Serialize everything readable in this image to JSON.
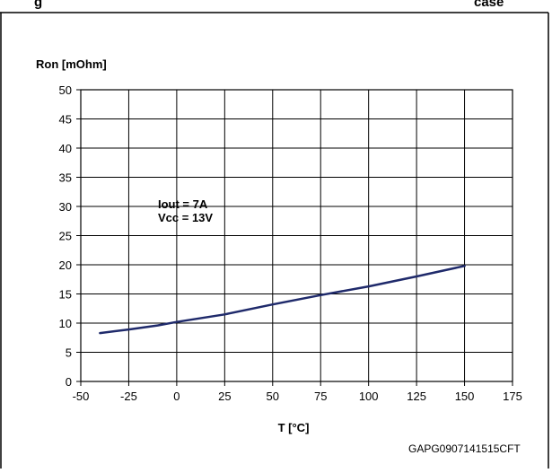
{
  "header": {
    "left_fragment": "g",
    "right_fragment": "case"
  },
  "footer": {
    "figure_id": "GAPG0907141515CFT"
  },
  "chart_data": {
    "type": "line",
    "title": "",
    "ylabel": "Ron [mOhm]",
    "xlabel": "T [°C]",
    "xlim": [
      -50,
      175
    ],
    "ylim": [
      0,
      50
    ],
    "xticks": [
      -50,
      -25,
      0,
      25,
      50,
      75,
      100,
      125,
      150,
      175
    ],
    "yticks": [
      0,
      5,
      10,
      15,
      20,
      25,
      30,
      35,
      40,
      45,
      50
    ],
    "grid": true,
    "annotation": [
      "Iout = 7A",
      "Vcc = 13V"
    ],
    "series": [
      {
        "color": "#1f2a6b",
        "x": [
          -40,
          -25,
          -10,
          0,
          25,
          50,
          75,
          100,
          125,
          150
        ],
        "y": [
          8.3,
          8.9,
          9.6,
          10.2,
          11.5,
          13.2,
          14.8,
          16.3,
          18.0,
          19.8
        ]
      }
    ]
  }
}
